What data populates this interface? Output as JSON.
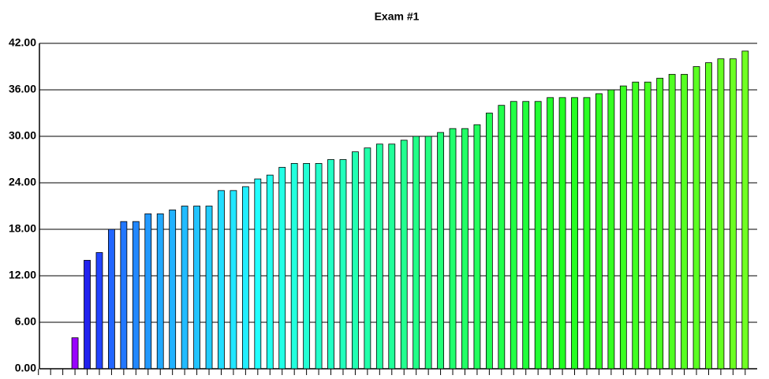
{
  "chart_data": {
    "type": "bar",
    "title": "Exam #1",
    "categories": [
      null,
      null,
      null,
      null,
      null,
      null,
      null,
      null,
      null,
      null,
      null,
      null,
      null,
      null,
      null,
      null,
      null,
      null,
      null,
      null,
      null,
      null,
      null,
      null,
      null,
      null,
      null,
      null,
      null,
      null,
      null,
      null,
      null,
      null,
      null,
      null,
      null,
      null,
      null,
      null,
      null,
      null,
      null,
      null,
      null,
      null,
      null,
      null,
      null,
      null,
      null,
      null,
      null,
      null,
      null,
      null,
      null,
      null,
      null
    ],
    "values": [
      null,
      null,
      null,
      4,
      14,
      15,
      18,
      19,
      19,
      20,
      20,
      20.5,
      21,
      21,
      21,
      23,
      23,
      23.5,
      24.5,
      25,
      26,
      26.5,
      26.5,
      26.5,
      27,
      27,
      28,
      28.5,
      29,
      29,
      29.5,
      30,
      30,
      30.5,
      31,
      31,
      31.5,
      33,
      34,
      34.5,
      34.5,
      34.5,
      35,
      35,
      35,
      35,
      35.5,
      36,
      36.5,
      37,
      37,
      37.5,
      38,
      38,
      39,
      39.5,
      40,
      40,
      41
    ],
    "colors": [
      null,
      null,
      null,
      "#9900ff",
      "#2222ee",
      "#2244ff",
      "#2266ff",
      "#2277ff",
      "#2288ff",
      "#2299ff",
      "#22aaff",
      "#22b2ff",
      "#22bbff",
      "#22c4ff",
      "#22ccff",
      "#22ddff",
      "#22e6ff",
      "#22eeff",
      "#22ffff",
      "#22fff0",
      "#22ffe6",
      "#22ffdd",
      "#22ffd4",
      "#22ffcc",
      "#22ffc4",
      "#22ffbb",
      "#22ffb2",
      "#22ffaa",
      "#22ffa2",
      "#22ff99",
      "#22ff90",
      "#22ff88",
      "#22ff80",
      "#22ff77",
      "#22ff6e",
      "#22ff66",
      "#22ff5e",
      "#22ff55",
      "#22ff4c",
      "#22ff44",
      "#22ff3b",
      "#22ff33",
      "#22ff2a",
      "#22ff22",
      "#26ff22",
      "#2bff22",
      "#30ff22",
      "#36ff22",
      "#3bff22",
      "#40ff22",
      "#46ff22",
      "#4bff22",
      "#50ff22",
      "#56ff22",
      "#5bff22",
      "#60ff22",
      "#66ff22",
      "#6bff22",
      "#70ff22"
    ],
    "ylim": [
      0,
      42
    ],
    "yticks": [
      {
        "value": 0,
        "label": "0.00"
      },
      {
        "value": 6,
        "label": "6.00"
      },
      {
        "value": 12,
        "label": "12.00"
      },
      {
        "value": 18,
        "label": "18.00"
      },
      {
        "value": 24,
        "label": "24.00"
      },
      {
        "value": 30,
        "label": "30.00"
      },
      {
        "value": 36,
        "label": "36.00"
      },
      {
        "value": 42,
        "label": "42.00"
      }
    ],
    "grid": true
  }
}
